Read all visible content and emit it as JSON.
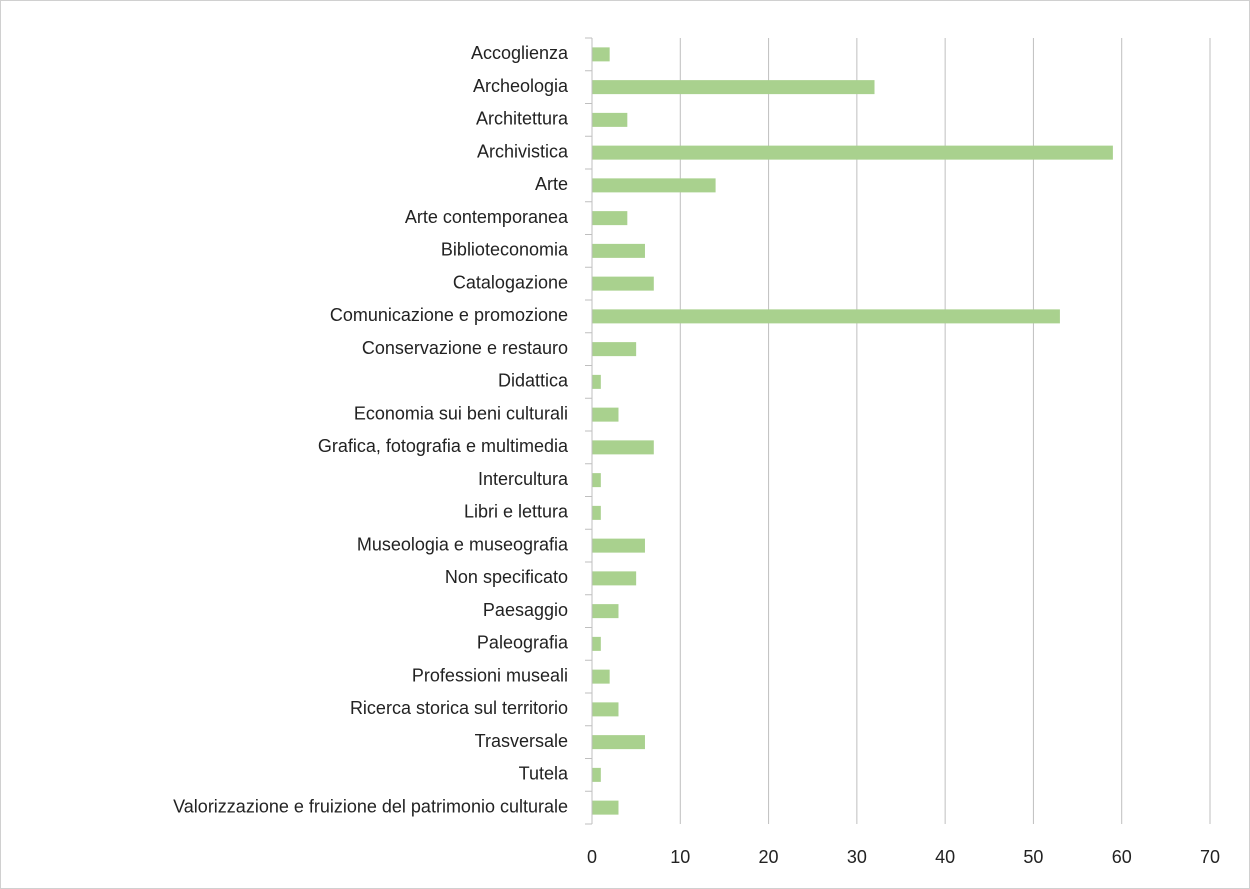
{
  "chart_data": {
    "type": "barh",
    "categories": [
      "Accoglienza",
      "Archeologia",
      "Architettura",
      "Archivistica",
      "Arte",
      "Arte contemporanea",
      "Biblioteconomia",
      "Catalogazione",
      "Comunicazione e promozione",
      "Conservazione e restauro",
      "Didattica",
      "Economia sui beni culturali",
      "Grafica, fotografia e multimedia",
      "Intercultura",
      "Libri e lettura",
      "Museologia e museografia",
      "Non specificato",
      "Paesaggio",
      "Paleografia",
      "Professioni museali",
      "Ricerca storica sul territorio",
      "Trasversale",
      "Tutela",
      "Valorizzazione e fruizione del patrimonio culturale"
    ],
    "values": [
      2,
      32,
      4,
      59,
      14,
      4,
      6,
      7,
      53,
      5,
      1,
      3,
      7,
      1,
      1,
      6,
      5,
      3,
      1,
      2,
      3,
      6,
      1,
      3
    ],
    "color": "#a9d18e",
    "xlim": [
      0,
      70
    ],
    "xticks": [
      0,
      10,
      20,
      30,
      40,
      50,
      60,
      70
    ],
    "grid": true
  }
}
